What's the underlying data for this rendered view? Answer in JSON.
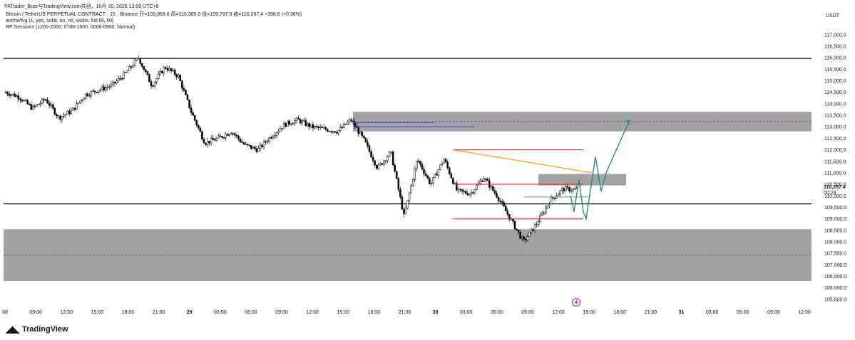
{
  "header": {
    "attribution": "PATrader_Buer与TradingView.com共创，10月 30, 2025 13:59 UTC+8",
    "symbol_line": "Bitcoin / TetherUS PERPETUAL CONTRACT · 15 · Binance  开=109,868.8  高=110,385.0  低=109,787.9  收=110,267.4  +398.6 (+0.36%)",
    "indicator1": "anche/fvg (1, yes, solid, no, no, wicks, full fill, 50)",
    "indicator2": "RP Sessions (1200-2000, 0700-1600, 0000-0900, Normal)"
  },
  "currency": "USDT",
  "price_badge": {
    "value": "110,267.4",
    "countdown": "00:28"
  },
  "logo_text": "TradingView",
  "colors": {
    "up": "#ffffff",
    "down": "#000000",
    "zone": "#9e9e9e",
    "red": "#ff2b2b",
    "orange": "#ff9800",
    "green": "#4caf50",
    "arrow": "#128c7e",
    "blue": "#1e3fd8",
    "purple": "#9c27b0"
  },
  "chart_data": {
    "type": "candlestick",
    "ylim": [
      105250,
      117750
    ],
    "y_ticks": [
      "117,000.0",
      "116,500.0",
      "116,000.0",
      "115,500.0",
      "115,000.0",
      "114,500.0",
      "114,000.0",
      "113,500.0",
      "113,000.0",
      "112,500.0",
      "112,000.0",
      "111,500.0",
      "111,000.0",
      "110,500.0",
      "110,000.0",
      "109,500.0",
      "109,000.0",
      "108,500.0",
      "108,000.0",
      "107,500.0",
      "107,000.0",
      "106,500.0",
      "106,000.0",
      "105,500.0"
    ],
    "x_ticks": [
      "00",
      "09:00",
      "12:00",
      "15:00",
      "18:00",
      "21:00",
      "29",
      "03:00",
      "06:00",
      "09:00",
      "12:00",
      "15:00",
      "18:00",
      "21:00",
      "30",
      "03:00",
      "06:00",
      "09:00",
      "12:00",
      "15:00",
      "18:00",
      "21:00",
      "31",
      "03:00",
      "06:00",
      "09:00",
      "12:00"
    ],
    "price_path": [
      114500,
      114300,
      113800,
      114200,
      113400,
      113700,
      114400,
      114600,
      114800,
      115300,
      116000,
      114800,
      115600,
      115200,
      113600,
      112300,
      112500,
      112800,
      112200,
      112000,
      112600,
      113100,
      113300,
      113000,
      112900,
      112800,
      113300,
      112400,
      111200,
      111900,
      109100,
      111600,
      110500,
      111600,
      110200,
      110100,
      110800,
      110000,
      109000,
      108000,
      108800,
      109800,
      110300,
      110267
    ],
    "horizontal_levels": [
      115970,
      109650
    ],
    "zones": [
      {
        "low": 112800,
        "high": 113650,
        "extended": true
      },
      {
        "low": 110450,
        "high": 110950,
        "extended": false
      },
      {
        "low": 106300,
        "high": 108550,
        "extended": true
      }
    ],
    "red_levels": [
      112000,
      110500,
      109000
    ],
    "orange_trendline": [
      112000,
      111000
    ],
    "green_level": 109950,
    "blue_level": 113000,
    "projection": [
      110000,
      109300,
      110700,
      109300,
      109000,
      111700,
      110200,
      111000,
      113300
    ]
  }
}
